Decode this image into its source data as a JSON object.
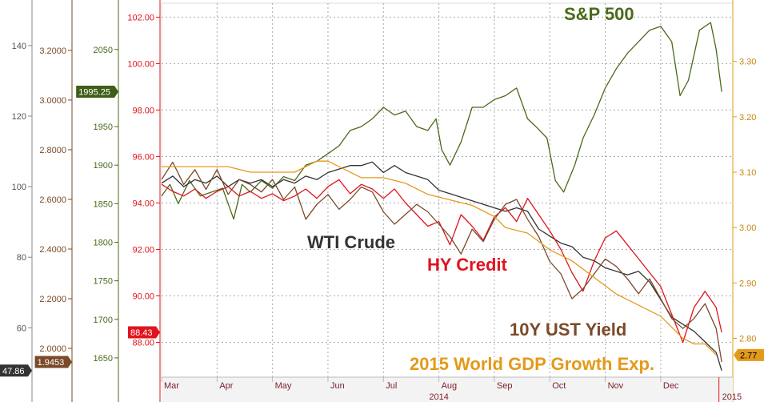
{
  "chart_data": {
    "type": "line",
    "x_axis": {
      "months": [
        "Mar",
        "Apr",
        "May",
        "Jun",
        "Jul",
        "Aug",
        "Sep",
        "Oct",
        "Nov",
        "Dec"
      ],
      "years": [
        "2014",
        "2015"
      ],
      "xlim_months": [
        0,
        10.3
      ]
    },
    "axes": [
      {
        "id": "wti",
        "ticks": [
          60,
          80,
          100,
          120,
          140
        ],
        "ylim": [
          46,
          152
        ],
        "last_value": "47.86",
        "badge_color": "#333333",
        "badge_text_color": "#ffffff",
        "color": "#555555"
      },
      {
        "id": "ust10y",
        "ticks": [
          "2.0000",
          "2.2000",
          "2.4000",
          "2.6000",
          "2.8000",
          "3.0000",
          "3.2000"
        ],
        "ylim": [
          1.884,
          3.39
        ],
        "last_value": "1.9453",
        "badge_color": "#7a4a2a",
        "badge_text_color": "#ffffff",
        "color": "#7a4a2a"
      },
      {
        "id": "spx",
        "ticks": [
          1650,
          1700,
          1750,
          1800,
          1850,
          1900,
          1950,
          2050
        ],
        "ylim": [
          1625,
          2110
        ],
        "last_value": "1995.25",
        "badge_color": "#3f5e1a",
        "badge_text_color": "#ffffff",
        "color": "#4a6a1a"
      },
      {
        "id": "hy",
        "ticks": [
          "88.00",
          "90.00",
          "92.00",
          "94.00",
          "96.00",
          "98.00",
          "100.00",
          "102.00"
        ],
        "ylim": [
          86.5,
          102.6
        ],
        "last_value": "88.43",
        "badge_color": "#e0141e",
        "badge_text_color": "#ffffff",
        "color": "#e0141e"
      },
      {
        "id": "gdp",
        "ticks": [
          "2.80",
          "2.90",
          "3.00",
          "3.10",
          "3.20",
          "3.30"
        ],
        "ylim": [
          2.73,
          3.405
        ],
        "last_value": "2.77",
        "badge_color": "#e39a1a",
        "badge_text_color": "#000000",
        "color": "#c8860f"
      }
    ],
    "series": [
      {
        "name": "S&P 500",
        "axis": "spx",
        "color": "#4a6a1a",
        "x": [
          0,
          0.15,
          0.3,
          0.5,
          0.7,
          0.9,
          1.1,
          1.3,
          1.45,
          1.6,
          1.8,
          2.0,
          2.2,
          2.4,
          2.6,
          2.8,
          3.0,
          3.2,
          3.4,
          3.6,
          3.8,
          4.0,
          4.2,
          4.4,
          4.6,
          4.8,
          4.95,
          5.05,
          5.2,
          5.4,
          5.6,
          5.8,
          6.0,
          6.2,
          6.4,
          6.6,
          6.75,
          6.95,
          7.1,
          7.25,
          7.45,
          7.6,
          7.8,
          8.0,
          8.2,
          8.4,
          8.6,
          8.8,
          9.0,
          9.2,
          9.35,
          9.5,
          9.7,
          9.9,
          10.0,
          10.1
        ],
        "values": [
          1860,
          1875,
          1850,
          1880,
          1860,
          1865,
          1870,
          1830,
          1875,
          1865,
          1880,
          1870,
          1885,
          1880,
          1900,
          1905,
          1915,
          1925,
          1945,
          1950,
          1960,
          1975,
          1965,
          1970,
          1950,
          1945,
          1960,
          1920,
          1900,
          1930,
          1975,
          1975,
          1985,
          1990,
          2000,
          1960,
          1950,
          1935,
          1880,
          1865,
          1900,
          1935,
          1965,
          2000,
          2025,
          2045,
          2060,
          2075,
          2080,
          2060,
          1990,
          2010,
          2075,
          2085,
          2050,
          1995.25
        ]
      },
      {
        "name": "WTI Crude",
        "axis": "wti",
        "color": "#333333",
        "x": [
          0,
          0.2,
          0.4,
          0.6,
          0.8,
          1.0,
          1.2,
          1.4,
          1.6,
          1.8,
          2.0,
          2.2,
          2.4,
          2.6,
          2.8,
          3.0,
          3.2,
          3.4,
          3.6,
          3.8,
          4.0,
          4.2,
          4.4,
          4.6,
          4.8,
          5.0,
          5.2,
          5.4,
          5.6,
          5.8,
          6.0,
          6.2,
          6.4,
          6.6,
          6.8,
          7.0,
          7.2,
          7.4,
          7.6,
          7.8,
          8.0,
          8.2,
          8.4,
          8.6,
          8.8,
          9.0,
          9.2,
          9.4,
          9.6,
          9.8,
          10.0,
          10.1
        ],
        "values": [
          101,
          103,
          100,
          102,
          101,
          103,
          100,
          102,
          101,
          102,
          100,
          102,
          101,
          103,
          102,
          104,
          105,
          106,
          106,
          107,
          104,
          106,
          104,
          103,
          102,
          99,
          98,
          97,
          96,
          95,
          94,
          93,
          94,
          93,
          88,
          86,
          84,
          83,
          80,
          79,
          77,
          76,
          75,
          76,
          73,
          68,
          63,
          61,
          59,
          56,
          53,
          47.86
        ]
      },
      {
        "name": "HY Credit",
        "axis": "hy",
        "color": "#e0141e",
        "x": [
          0,
          0.2,
          0.4,
          0.6,
          0.8,
          1.0,
          1.2,
          1.4,
          1.6,
          1.8,
          2.0,
          2.2,
          2.4,
          2.6,
          2.8,
          3.0,
          3.2,
          3.4,
          3.6,
          3.8,
          4.0,
          4.2,
          4.4,
          4.6,
          4.8,
          5.0,
          5.2,
          5.4,
          5.6,
          5.8,
          6.0,
          6.2,
          6.4,
          6.6,
          6.8,
          7.0,
          7.2,
          7.4,
          7.6,
          7.8,
          8.0,
          8.2,
          8.4,
          8.6,
          8.8,
          9.0,
          9.2,
          9.4,
          9.6,
          9.8,
          10.0,
          10.1
        ],
        "values": [
          94.8,
          94.5,
          94.3,
          94.6,
          94.2,
          94.5,
          94.7,
          94.3,
          94.5,
          94.2,
          94.4,
          94.1,
          94.3,
          94.6,
          94.2,
          94.7,
          95.0,
          94.4,
          94.8,
          94.6,
          94.2,
          94.6,
          94.0,
          93.5,
          93.0,
          93.2,
          92.2,
          93.5,
          93.0,
          92.4,
          93.4,
          93.8,
          93.2,
          94.2,
          93.5,
          92.8,
          92.0,
          91.0,
          90.2,
          91.5,
          92.5,
          92.8,
          92.2,
          91.6,
          91.0,
          90.4,
          89.2,
          88.0,
          89.5,
          90.2,
          89.5,
          88.43
        ]
      },
      {
        "name": "10Y UST Yield",
        "axis": "ust10y",
        "color": "#7a4a2a",
        "x": [
          0,
          0.2,
          0.4,
          0.6,
          0.8,
          1.0,
          1.2,
          1.4,
          1.6,
          1.8,
          2.0,
          2.2,
          2.4,
          2.6,
          2.8,
          3.0,
          3.2,
          3.4,
          3.6,
          3.8,
          4.0,
          4.2,
          4.4,
          4.6,
          4.8,
          5.0,
          5.2,
          5.4,
          5.6,
          5.8,
          6.0,
          6.2,
          6.4,
          6.6,
          6.8,
          7.0,
          7.2,
          7.4,
          7.6,
          7.8,
          8.0,
          8.2,
          8.4,
          8.6,
          8.8,
          9.0,
          9.2,
          9.4,
          9.6,
          9.8,
          10.0,
          10.1
        ],
        "values": [
          2.68,
          2.75,
          2.66,
          2.72,
          2.64,
          2.72,
          2.62,
          2.68,
          2.66,
          2.63,
          2.68,
          2.6,
          2.65,
          2.52,
          2.58,
          2.62,
          2.56,
          2.6,
          2.65,
          2.63,
          2.55,
          2.5,
          2.54,
          2.58,
          2.55,
          2.5,
          2.45,
          2.38,
          2.48,
          2.43,
          2.52,
          2.58,
          2.6,
          2.52,
          2.45,
          2.35,
          2.3,
          2.2,
          2.24,
          2.3,
          2.36,
          2.33,
          2.28,
          2.22,
          2.28,
          2.2,
          2.12,
          2.08,
          2.12,
          2.18,
          2.08,
          1.9453
        ]
      },
      {
        "name": "2015 World GDP Growth Exp.",
        "axis": "gdp",
        "color": "#e39a1a",
        "x": [
          0,
          0.4,
          0.8,
          1.2,
          1.6,
          2.0,
          2.4,
          2.8,
          3.0,
          3.2,
          3.6,
          4.0,
          4.4,
          4.8,
          5.2,
          5.6,
          6.0,
          6.2,
          6.6,
          7.0,
          7.4,
          7.8,
          8.2,
          8.6,
          9.0,
          9.2,
          9.4,
          9.6,
          9.8,
          9.9,
          10.0
        ],
        "values": [
          3.11,
          3.11,
          3.11,
          3.11,
          3.1,
          3.1,
          3.1,
          3.12,
          3.12,
          3.11,
          3.09,
          3.09,
          3.08,
          3.06,
          3.05,
          3.04,
          3.02,
          3.0,
          2.99,
          2.96,
          2.94,
          2.91,
          2.88,
          2.86,
          2.84,
          2.82,
          2.8,
          2.79,
          2.79,
          2.78,
          2.77
        ]
      }
    ],
    "series_labels": [
      "S&P 500",
      "WTI Crude",
      "HY Credit",
      "10Y UST Yield",
      "2015 World GDP Growth Exp."
    ],
    "grid": true
  }
}
